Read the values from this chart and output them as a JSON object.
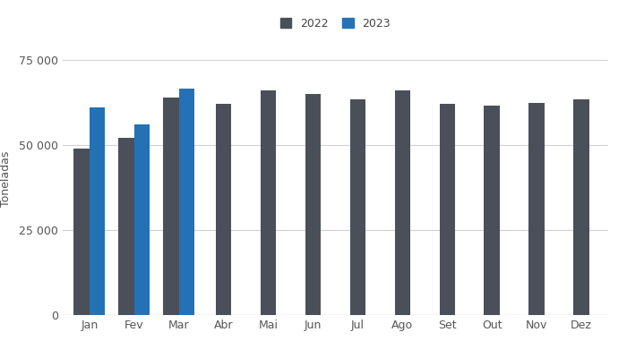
{
  "months": [
    "Jan",
    "Fev",
    "Mar",
    "Abr",
    "Mai",
    "Jun",
    "Jul",
    "Ago",
    "Set",
    "Out",
    "Nov",
    "Dez"
  ],
  "values_2022": [
    49000,
    52000,
    64000,
    62000,
    66000,
    65000,
    63500,
    66000,
    62000,
    61500,
    62500,
    63500
  ],
  "values_2023": [
    61000,
    56000,
    66500,
    null,
    null,
    null,
    null,
    null,
    null,
    null,
    null,
    null
  ],
  "color_2022": "#4a4f5a",
  "color_2023": "#2472b5",
  "ylabel": "Toneladas",
  "ylim": [
    0,
    80000
  ],
  "yticks": [
    0,
    25000,
    50000,
    75000
  ],
  "ytick_labels": [
    "0",
    "25 000",
    "50 000",
    "75 000"
  ],
  "legend_2022": "2022",
  "legend_2023": "2023",
  "bar_width": 0.35,
  "background_color": "#ffffff",
  "grid_color": "#d0d0d0",
  "grid_linewidth": 0.8
}
